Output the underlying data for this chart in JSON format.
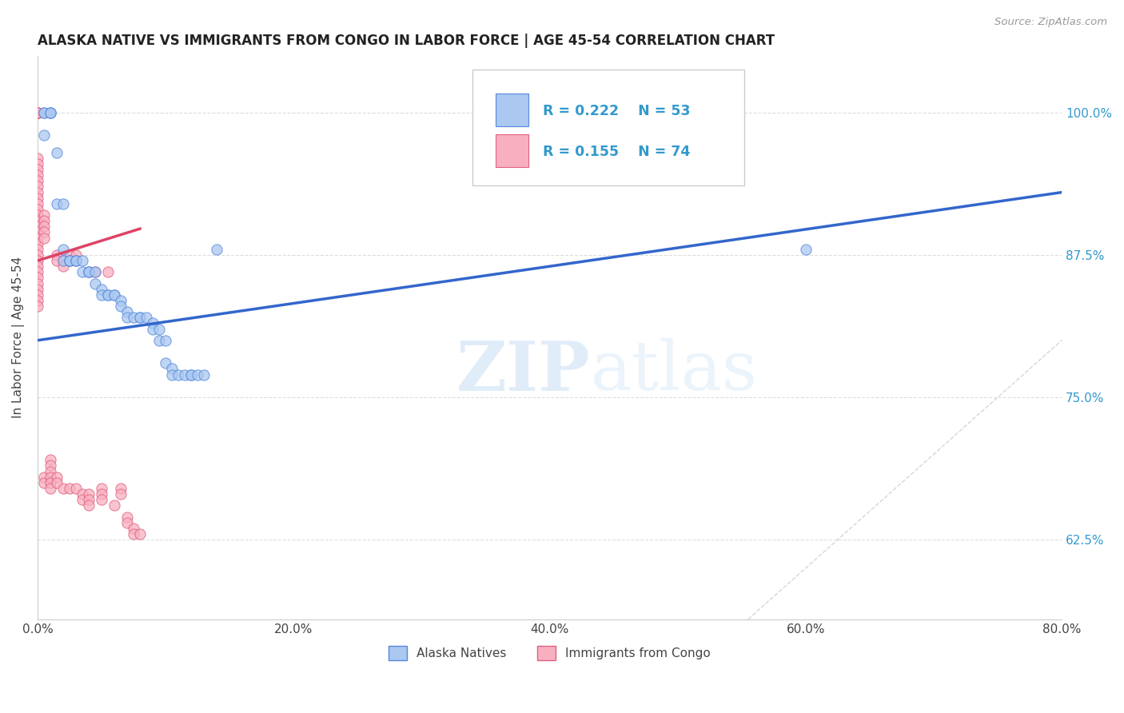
{
  "title": "ALASKA NATIVE VS IMMIGRANTS FROM CONGO IN LABOR FORCE | AGE 45-54 CORRELATION CHART",
  "source": "Source: ZipAtlas.com",
  "xlabel_ticks": [
    "0.0%",
    "20.0%",
    "40.0%",
    "60.0%",
    "80.0%"
  ],
  "xlabel_vals": [
    0.0,
    0.2,
    0.4,
    0.6,
    0.8
  ],
  "ylabel_ticks": [
    "62.5%",
    "75.0%",
    "87.5%",
    "100.0%"
  ],
  "ylabel_vals": [
    0.625,
    0.75,
    0.875,
    1.0
  ],
  "ylabel_label": "In Labor Force | Age 45-54",
  "xmin": 0.0,
  "xmax": 0.8,
  "ymin": 0.555,
  "ymax": 1.05,
  "legend_blue_r": "R = 0.222",
  "legend_blue_n": "N = 53",
  "legend_pink_r": "R = 0.155",
  "legend_pink_n": "N = 74",
  "legend_label_blue": "Alaska Natives",
  "legend_label_pink": "Immigrants from Congo",
  "blue_color": "#aac8f0",
  "blue_edge_color": "#5588dd",
  "pink_color": "#f8b0c0",
  "pink_edge_color": "#e06080",
  "blue_line_color": "#3366cc",
  "pink_line_color": "#dd4466",
  "ref_line_color": "#cccccc",
  "watermark_zip": "ZIP",
  "watermark_atlas": "atlas",
  "blue_scatter_x": [
    0.005,
    0.005,
    0.005,
    0.01,
    0.01,
    0.01,
    0.015,
    0.015,
    0.02,
    0.02,
    0.02,
    0.025,
    0.025,
    0.025,
    0.03,
    0.03,
    0.035,
    0.035,
    0.04,
    0.04,
    0.04,
    0.045,
    0.045,
    0.05,
    0.05,
    0.055,
    0.055,
    0.06,
    0.06,
    0.065,
    0.065,
    0.07,
    0.07,
    0.075,
    0.08,
    0.08,
    0.085,
    0.09,
    0.09,
    0.095,
    0.095,
    0.1,
    0.1,
    0.105,
    0.105,
    0.11,
    0.115,
    0.12,
    0.12,
    0.125,
    0.13,
    0.14,
    0.6
  ],
  "blue_scatter_y": [
    0.98,
    1.0,
    1.0,
    1.0,
    1.0,
    1.0,
    0.965,
    0.92,
    0.92,
    0.88,
    0.87,
    0.87,
    0.87,
    0.87,
    0.87,
    0.87,
    0.87,
    0.86,
    0.86,
    0.86,
    0.86,
    0.86,
    0.85,
    0.845,
    0.84,
    0.84,
    0.84,
    0.84,
    0.84,
    0.835,
    0.83,
    0.825,
    0.82,
    0.82,
    0.82,
    0.82,
    0.82,
    0.815,
    0.81,
    0.81,
    0.8,
    0.8,
    0.78,
    0.775,
    0.77,
    0.77,
    0.77,
    0.77,
    0.77,
    0.77,
    0.77,
    0.88,
    0.88
  ],
  "pink_scatter_x": [
    0.0,
    0.0,
    0.0,
    0.0,
    0.0,
    0.0,
    0.0,
    0.0,
    0.0,
    0.0,
    0.0,
    0.0,
    0.0,
    0.0,
    0.0,
    0.0,
    0.0,
    0.0,
    0.0,
    0.0,
    0.0,
    0.0,
    0.0,
    0.0,
    0.0,
    0.0,
    0.0,
    0.0,
    0.0,
    0.0,
    0.0,
    0.005,
    0.005,
    0.005,
    0.005,
    0.005,
    0.005,
    0.005,
    0.01,
    0.01,
    0.01,
    0.01,
    0.01,
    0.01,
    0.015,
    0.015,
    0.015,
    0.015,
    0.02,
    0.02,
    0.02,
    0.025,
    0.025,
    0.03,
    0.03,
    0.03,
    0.035,
    0.035,
    0.04,
    0.04,
    0.04,
    0.045,
    0.05,
    0.05,
    0.05,
    0.055,
    0.06,
    0.065,
    0.065,
    0.07,
    0.07,
    0.075,
    0.075,
    0.08
  ],
  "pink_scatter_y": [
    1.0,
    1.0,
    1.0,
    1.0,
    0.96,
    0.955,
    0.95,
    0.945,
    0.94,
    0.935,
    0.93,
    0.925,
    0.92,
    0.915,
    0.91,
    0.905,
    0.9,
    0.895,
    0.89,
    0.885,
    0.88,
    0.875,
    0.87,
    0.865,
    0.86,
    0.855,
    0.85,
    0.845,
    0.84,
    0.835,
    0.83,
    0.91,
    0.905,
    0.9,
    0.895,
    0.89,
    0.68,
    0.675,
    0.695,
    0.69,
    0.685,
    0.68,
    0.675,
    0.67,
    0.875,
    0.87,
    0.68,
    0.675,
    0.87,
    0.865,
    0.67,
    0.875,
    0.67,
    0.875,
    0.87,
    0.67,
    0.665,
    0.66,
    0.665,
    0.66,
    0.655,
    0.86,
    0.67,
    0.665,
    0.66,
    0.86,
    0.655,
    0.67,
    0.665,
    0.645,
    0.64,
    0.635,
    0.63,
    0.63
  ],
  "blue_trend_x": [
    0.0,
    0.8
  ],
  "blue_trend_y": [
    0.8,
    0.93
  ],
  "pink_trend_x": [
    0.0,
    0.08
  ],
  "pink_trend_y": [
    0.87,
    0.898
  ],
  "ref_line_x": [
    0.555,
    1.0
  ],
  "ref_line_y": [
    0.555,
    1.0
  ]
}
